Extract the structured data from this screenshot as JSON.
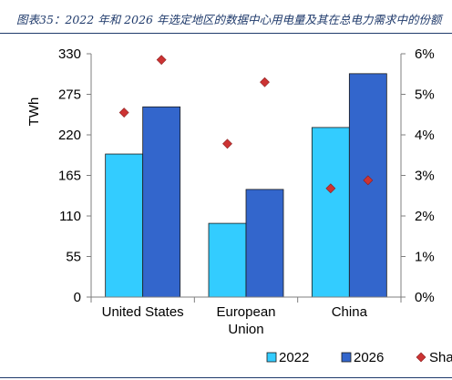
{
  "caption": "图表35：2022 年和 2026 年选定地区的数据中心用电量及其在总电力需求中的份额",
  "chart_data": {
    "type": "bar",
    "categories": [
      [
        "United States"
      ],
      [
        "European",
        "Union"
      ],
      [
        "China"
      ]
    ],
    "series": [
      {
        "name": "2022",
        "values": [
          194,
          100,
          230
        ],
        "color": "#33ccff"
      },
      {
        "name": "2026",
        "values": [
          258,
          146,
          303
        ],
        "color": "#3366cc"
      }
    ],
    "share_series": {
      "name": "Share",
      "legend_label": "Sha",
      "values": {
        "2022": [
          4.55,
          3.78,
          2.68
        ],
        "2026": [
          5.85,
          5.3,
          2.88
        ]
      },
      "color": "#cc3333"
    },
    "ylabel": "TWh",
    "ylim": [
      0,
      330
    ],
    "yticks": [
      "0",
      "55",
      "110",
      "165",
      "220",
      "275",
      "330"
    ],
    "y2lim": [
      0,
      6
    ],
    "y2ticks": [
      "0%",
      "1%",
      "2%",
      "3%",
      "4%",
      "5%",
      "6%"
    ],
    "grid": false,
    "legend_position": "bottom"
  }
}
